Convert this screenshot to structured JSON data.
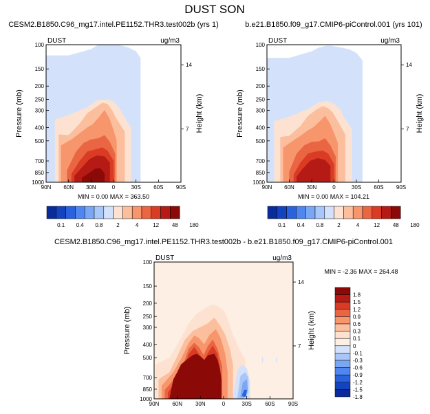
{
  "chart_data": [
    {
      "type": "heatmap",
      "figure_title": "DUST SON",
      "title": "CESM2.B1850.C96_mg17.intel.PE1152.THR3.test002b (yrs 1)",
      "variable": "DUST",
      "units": "ug/m3",
      "xlabel": "",
      "ylabel": "Pressure (mb)",
      "y2label": "Height (km)",
      "x_ticks": [
        "90N",
        "60N",
        "30N",
        "0",
        "30S",
        "60S",
        "90S"
      ],
      "y_ticks": [
        100,
        150,
        200,
        250,
        300,
        400,
        500,
        700,
        850,
        1000
      ],
      "y2_ticks": [
        14,
        7
      ],
      "ylim": [
        1000,
        100
      ],
      "stats": {
        "min": "0.00",
        "max": "363.50"
      },
      "colorbar_labels": [
        "0.1",
        "0.4",
        "0.8",
        "2",
        "4",
        "12",
        "48",
        "180"
      ],
      "colors": [
        "#0a2c9a",
        "#1443c0",
        "#2a62de",
        "#4f86ef",
        "#7aa7f4",
        "#a8c6f7",
        "#d3e2fa",
        "#fde2d2",
        "#fcbf9e",
        "#f7956c",
        "#ea6541",
        "#d93b25",
        "#b51a14",
        "#8b0a08"
      ],
      "regions": [
        {
          "label": "base",
          "level": 6,
          "x_lat": [
            90,
            60,
            30,
            20,
            10,
            5,
            -5,
            -20,
            -30,
            -36,
            -36,
            90
          ],
          "p": [
            120,
            120,
            108,
            100,
            100,
            100,
            100,
            105,
            112,
            125,
            1000,
            1000
          ]
        },
        {
          "label": "layer",
          "level": 7,
          "x_lat": [
            78,
            60,
            35,
            22,
            15,
            7,
            0,
            -7,
            -15,
            -23,
            -23,
            78
          ],
          "p": [
            350,
            325,
            285,
            255,
            252,
            250,
            260,
            285,
            340,
            400,
            1000,
            1000
          ]
        },
        {
          "label": "layer",
          "level": 8,
          "x_lat": [
            73,
            60,
            45,
            35,
            22,
            15,
            8,
            2,
            -3,
            -15,
            -15,
            73
          ],
          "p": [
            450,
            455,
            375,
            315,
            282,
            265,
            270,
            300,
            340,
            430,
            1000,
            1000
          ]
        },
        {
          "label": "layer",
          "level": 9,
          "x_lat": [
            70,
            55,
            45,
            35,
            28,
            20,
            12,
            6,
            0,
            -4,
            -4,
            70
          ],
          "p": [
            540,
            485,
            440,
            400,
            380,
            340,
            300,
            340,
            420,
            500,
            1000,
            1000
          ]
        },
        {
          "label": "layer",
          "level": 10,
          "x_lat": [
            62,
            50,
            40,
            30,
            20,
            12,
            5,
            -2,
            -2,
            62
          ],
          "p": [
            820,
            600,
            520,
            490,
            480,
            455,
            510,
            620,
            1000,
            1000
          ]
        },
        {
          "label": "layer",
          "level": 11,
          "x_lat": [
            56,
            45,
            35,
            25,
            15,
            8,
            0,
            0,
            56
          ],
          "p": [
            870,
            700,
            600,
            580,
            560,
            590,
            700,
            1000,
            1000
          ]
        },
        {
          "label": "layer",
          "level": 12,
          "x_lat": [
            52,
            42,
            32,
            22,
            12,
            5,
            5,
            52
          ],
          "p": [
            900,
            780,
            680,
            640,
            650,
            720,
            1000,
            1000
          ]
        },
        {
          "label": "layer",
          "level": 13,
          "x_lat": [
            42,
            33,
            25,
            18,
            12,
            12,
            42
          ],
          "p": [
            930,
            860,
            800,
            790,
            860,
            1000,
            1000
          ]
        }
      ]
    },
    {
      "type": "heatmap",
      "title": "b.e21.B1850.f09_g17.CMIP6-piControl.001 (yrs 101)",
      "variable": "DUST",
      "units": "ug/m3",
      "xlabel": "",
      "ylabel": "Pressure (mb)",
      "y2label": "Height (km)",
      "x_ticks": [
        "90N",
        "60N",
        "30N",
        "0",
        "30S",
        "60S",
        "90S"
      ],
      "y_ticks": [
        100,
        150,
        200,
        250,
        300,
        400,
        500,
        700,
        850,
        1000
      ],
      "y2_ticks": [
        14,
        7
      ],
      "ylim": [
        1000,
        100
      ],
      "stats": {
        "min": "0.00",
        "max": "104.21"
      },
      "colorbar_labels": [
        "0.1",
        "0.4",
        "0.8",
        "2",
        "4",
        "12",
        "48",
        "180"
      ],
      "colors": [
        "#0a2c9a",
        "#1443c0",
        "#2a62de",
        "#4f86ef",
        "#7aa7f4",
        "#a8c6f7",
        "#d3e2fa",
        "#fde2d2",
        "#fcbf9e",
        "#f7956c",
        "#ea6541",
        "#d93b25",
        "#b51a14",
        "#8b0a08"
      ],
      "regions": [
        {
          "label": "base",
          "level": 6,
          "x_lat": [
            90,
            60,
            30,
            20,
            10,
            5,
            -5,
            -20,
            -30,
            -38,
            -38,
            90
          ],
          "p": [
            125,
            125,
            112,
            105,
            102,
            102,
            104,
            108,
            115,
            130,
            1000,
            1000
          ]
        },
        {
          "label": "layer",
          "level": 7,
          "x_lat": [
            80,
            60,
            35,
            22,
            15,
            8,
            0,
            -8,
            -15,
            -24,
            -24,
            80
          ],
          "p": [
            360,
            335,
            295,
            265,
            260,
            258,
            270,
            295,
            350,
            410,
            1000,
            1000
          ]
        },
        {
          "label": "layer",
          "level": 8,
          "x_lat": [
            72,
            60,
            45,
            35,
            25,
            15,
            8,
            2,
            -5,
            -15,
            -15,
            72
          ],
          "p": [
            470,
            460,
            390,
            330,
            300,
            280,
            290,
            310,
            360,
            450,
            1000,
            1000
          ]
        },
        {
          "label": "layer",
          "level": 9,
          "x_lat": [
            68,
            55,
            45,
            35,
            28,
            20,
            12,
            6,
            0,
            -5,
            -5,
            68
          ],
          "p": [
            560,
            500,
            460,
            420,
            400,
            365,
            330,
            370,
            440,
            520,
            1000,
            1000
          ]
        },
        {
          "label": "layer",
          "level": 10,
          "x_lat": [
            60,
            50,
            40,
            30,
            20,
            12,
            5,
            -2,
            -2,
            60
          ],
          "p": [
            840,
            620,
            540,
            510,
            505,
            480,
            540,
            650,
            1000,
            1000
          ]
        },
        {
          "label": "layer",
          "level": 11,
          "x_lat": [
            54,
            45,
            35,
            25,
            15,
            8,
            0,
            0,
            54
          ],
          "p": [
            880,
            720,
            620,
            600,
            590,
            620,
            740,
            1000,
            1000
          ]
        },
        {
          "label": "layer",
          "level": 12,
          "x_lat": [
            50,
            42,
            32,
            22,
            12,
            5,
            5,
            50
          ],
          "p": [
            910,
            800,
            700,
            670,
            690,
            760,
            1000,
            1000
          ]
        }
      ]
    },
    {
      "type": "heatmap",
      "title": "CESM2.B1850.C96_mg17.intel.PE1152.THR3.test002b - b.e21.B1850.f09_g17.CMIP6-piControl.001",
      "variable": "DUST",
      "units": "ug/m3",
      "xlabel": "",
      "ylabel": "Pressure (mb)",
      "y2label": "Height (km)",
      "x_ticks": [
        "90N",
        "60N",
        "30N",
        "0",
        "30S",
        "60S",
        "90S"
      ],
      "y_ticks": [
        100,
        150,
        200,
        250,
        300,
        400,
        500,
        700,
        850,
        1000
      ],
      "y2_ticks": [
        14,
        7
      ],
      "ylim": [
        1000,
        100
      ],
      "stats": {
        "min": "-2.36",
        "max": "264.48"
      },
      "colorbar_labels": [
        "1.8",
        "1.5",
        "1.2",
        "0.9",
        "0.6",
        "0.3",
        "0.1",
        "0",
        "-0.1",
        "-0.3",
        "-0.6",
        "-0.9",
        "-1.2",
        "-1.5",
        "-1.8"
      ],
      "colors": [
        "#8b0a08",
        "#b51a14",
        "#d93b25",
        "#ea6541",
        "#f7956c",
        "#fcbf9e",
        "#fde2d2",
        "#fdefe3",
        "#d3e2fa",
        "#a8c6f7",
        "#7aa7f4",
        "#4f86ef",
        "#2a62de",
        "#1443c0",
        "#0a2c9a"
      ],
      "regions": [
        {
          "label": "base",
          "level": 7,
          "x_lat": [
            90,
            90,
            -90,
            -90
          ],
          "p": [
            100,
            1000,
            1000,
            100
          ]
        },
        {
          "label": "layer",
          "level": 6,
          "x_lat": [
            88,
            70,
            55,
            45,
            35,
            25,
            15,
            8,
            0,
            -5,
            -12,
            -20,
            -28,
            -28,
            88
          ],
          "p": [
            560,
            500,
            360,
            280,
            240,
            220,
            205,
            210,
            225,
            260,
            340,
            430,
            520,
            1000,
            1000
          ]
        },
        {
          "label": "layer",
          "level": 5,
          "x_lat": [
            84,
            70,
            60,
            50,
            40,
            30,
            20,
            12,
            5,
            -2,
            -8,
            -12,
            -12,
            84
          ],
          "p": [
            720,
            640,
            490,
            370,
            320,
            300,
            280,
            255,
            290,
            340,
            430,
            560,
            1000,
            1000
          ]
        },
        {
          "label": "layer",
          "level": 4,
          "x_lat": [
            80,
            65,
            55,
            45,
            38,
            32,
            25,
            18,
            10,
            4,
            -2,
            -5,
            -5,
            80
          ],
          "p": [
            800,
            640,
            510,
            390,
            345,
            360,
            400,
            340,
            310,
            360,
            470,
            630,
            1000,
            1000
          ]
        },
        {
          "label": "layer",
          "level": 3,
          "x_lat": [
            76,
            62,
            52,
            45,
            38,
            32,
            26,
            20,
            14,
            8,
            2,
            2,
            76
          ],
          "p": [
            860,
            700,
            560,
            430,
            390,
            420,
            480,
            410,
            370,
            430,
            580,
            1000,
            1000
          ]
        },
        {
          "label": "layer",
          "level": 2,
          "x_lat": [
            72,
            62,
            52,
            45,
            38,
            32,
            26,
            20,
            14,
            8,
            4,
            4,
            72
          ],
          "p": [
            900,
            740,
            600,
            470,
            420,
            470,
            540,
            460,
            410,
            470,
            640,
            1000,
            1000
          ]
        },
        {
          "label": "max",
          "level": 0,
          "x_lat": [
            70,
            65,
            60,
            55,
            48,
            40,
            35,
            30,
            25,
            20,
            12,
            8,
            5,
            3,
            3,
            70
          ],
          "p": [
            1000,
            720,
            640,
            560,
            520,
            480,
            470,
            490,
            520,
            480,
            470,
            520,
            600,
            720,
            1000,
            1000
          ]
        },
        {
          "label": "neg",
          "level": 8,
          "x_lat": [
            -12,
            -18,
            -24,
            -30,
            -34,
            -34,
            -28,
            -14
          ],
          "p": [
            1000,
            620,
            560,
            600,
            750,
            1000,
            1000,
            1000
          ]
        },
        {
          "label": "neg",
          "level": 9,
          "x_lat": [
            -18,
            -22,
            -28,
            -32,
            -32,
            -26,
            -18
          ],
          "p": [
            980,
            680,
            640,
            700,
            900,
            990,
            990
          ]
        },
        {
          "label": "neg",
          "level": 10,
          "x_lat": [
            -22,
            -25,
            -30,
            -31,
            -28,
            -22
          ],
          "p": [
            950,
            760,
            720,
            860,
            970,
            970
          ]
        },
        {
          "label": "neg",
          "level": 12,
          "x_lat": [
            -24,
            -27,
            -30,
            -29,
            -25
          ],
          "p": [
            940,
            860,
            860,
            960,
            960
          ]
        },
        {
          "label": "speck",
          "level": 8,
          "x_lat": [
            -50,
            -51,
            -51,
            -50
          ],
          "p": [
            500,
            495,
            540,
            545
          ]
        },
        {
          "label": "speck",
          "level": 8,
          "x_lat": [
            -68,
            -69,
            -69,
            -68
          ],
          "p": [
            500,
            495,
            540,
            545
          ]
        }
      ]
    }
  ]
}
